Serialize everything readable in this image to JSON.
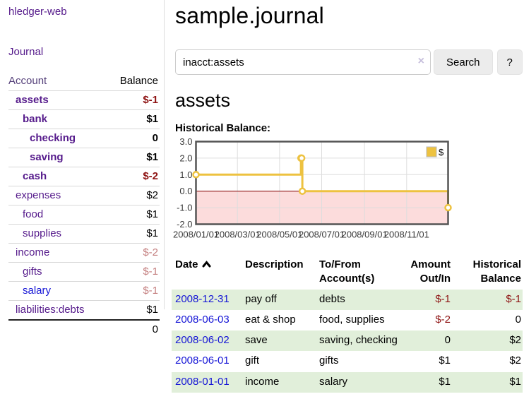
{
  "app": {
    "brand": "hledger-web"
  },
  "nav": {
    "journal": "Journal"
  },
  "sidebar": {
    "accounts_table": {
      "headers": {
        "account": "Account",
        "balance": "Balance"
      },
      "rows": [
        {
          "label": "assets",
          "balance": "$-1",
          "indent": 1,
          "bold": true,
          "neg": "strong"
        },
        {
          "label": "bank",
          "balance": "$1",
          "indent": 2,
          "bold": true
        },
        {
          "label": "checking",
          "balance": "0",
          "indent": 3,
          "bold": true
        },
        {
          "label": "saving",
          "balance": "$1",
          "indent": 3,
          "bold": true
        },
        {
          "label": "cash",
          "balance": "$-2",
          "indent": 2,
          "bold": true,
          "neg": "strong"
        },
        {
          "label": "expenses",
          "balance": "$2",
          "indent": 1
        },
        {
          "label": "food",
          "balance": "$1",
          "indent": 2
        },
        {
          "label": "supplies",
          "balance": "$1",
          "indent": 2
        },
        {
          "label": "income",
          "balance": "$-2",
          "indent": 1,
          "neg": "soft"
        },
        {
          "label": "gifts",
          "balance": "$-1",
          "indent": 2,
          "neg": "soft"
        },
        {
          "label": "salary",
          "balance": "$-1",
          "indent": 2,
          "neg": "soft",
          "blue": true
        },
        {
          "label": "liabilities:debts",
          "balance": "$1",
          "indent": 1
        }
      ],
      "total": "0"
    }
  },
  "header": {
    "title": "sample.journal"
  },
  "search": {
    "value": "inacct:assets",
    "clear_icon": "×",
    "button_label": "Search",
    "help_label": "?"
  },
  "account_page": {
    "heading": "assets",
    "chart_title": "Historical Balance:"
  },
  "chart_data": {
    "type": "line",
    "step": true,
    "series": [
      {
        "name": "$",
        "color": "#edc240",
        "points": [
          [
            "2008-01-01",
            1
          ],
          [
            "2008-06-01",
            2
          ],
          [
            "2008-06-02",
            2
          ],
          [
            "2008-06-03",
            0
          ],
          [
            "2008-12-31",
            -1
          ]
        ]
      }
    ],
    "ylim": [
      -2.0,
      3.0
    ],
    "yticks": [
      3.0,
      2.0,
      1.0,
      0.0,
      -1.0,
      -2.0
    ],
    "xticks": [
      "2008/01/01",
      "2008/03/01",
      "2008/05/01",
      "2008/07/01",
      "2008/09/01",
      "2008/11/01"
    ],
    "x_range": [
      "2008-01-01",
      "2008-12-31"
    ],
    "grid": true,
    "legend_position": "top-right",
    "negative_region_shaded": true
  },
  "register_table": {
    "headers": {
      "date": "Date",
      "description": "Description",
      "accounts": "To/From Account(s)",
      "amount": "Amount Out/In",
      "balance": "Historical Balance"
    },
    "rows": [
      {
        "date": "2008-12-31",
        "description": "pay off",
        "accounts": "debts",
        "amount": "$-1",
        "balance": "$-1",
        "amount_neg": true,
        "balance_neg": true
      },
      {
        "date": "2008-06-03",
        "description": "eat & shop",
        "accounts": "food, supplies",
        "amount": "$-2",
        "balance": "0",
        "amount_neg": true
      },
      {
        "date": "2008-06-02",
        "description": "save",
        "accounts": "saving, checking",
        "amount": "0",
        "balance": "$2"
      },
      {
        "date": "2008-06-01",
        "description": "gift",
        "accounts": "gifts",
        "amount": "$1",
        "balance": "$2"
      },
      {
        "date": "2008-01-01",
        "description": "income",
        "accounts": "salary",
        "amount": "$1",
        "balance": "$1"
      }
    ]
  },
  "colors": {
    "link_purple": "#551a8b",
    "link_blue": "#1515d6",
    "negative_strong": "#8e1313",
    "negative_soft": "#c47f7f",
    "row_highlight": "#e1efda",
    "chart_line": "#edc240",
    "chart_negative_fill": "#fcdcdc",
    "chart_zero_line": "#8b0000",
    "chart_border": "#545454",
    "chart_grid": "#dddddd",
    "button_bg": "#ececec"
  }
}
